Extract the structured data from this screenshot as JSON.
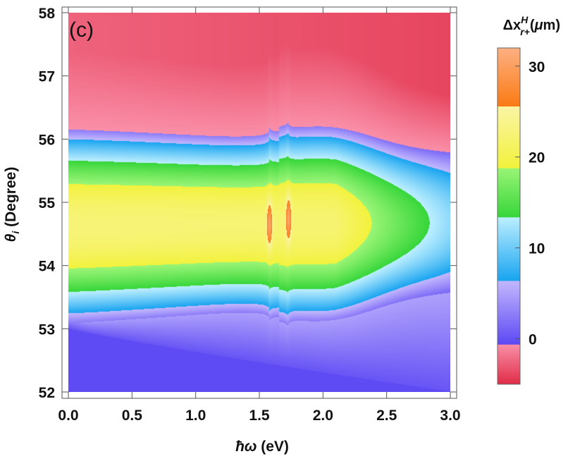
{
  "chart_data": {
    "type": "heatmap",
    "panel_label": "(c)",
    "xlabel": "ħω (eV)",
    "ylabel": "θi (Degree)",
    "xlim": [
      0,
      3
    ],
    "ylim": [
      52,
      58
    ],
    "x_ticks": [
      "0.0",
      "0.5",
      "1.0",
      "1.5",
      "2.0",
      "2.5",
      "3.0"
    ],
    "y_ticks": [
      "52",
      "53",
      "54",
      "55",
      "56",
      "57",
      "58"
    ],
    "resonances_eV": [
      1.58,
      1.73
    ],
    "colorbar": {
      "title": "Δx^H_r+(μm)",
      "range": [
        -5,
        32
      ],
      "ticks": [
        "0",
        "10",
        "20",
        "30"
      ],
      "bands": [
        {
          "from": -5,
          "to": -0.6,
          "color_low": "#e02b45",
          "color_high": "#fa8fa8"
        },
        {
          "from": -0.6,
          "to": 6.4,
          "color_low": "#5c48f4",
          "color_high": "#c3b8fd"
        },
        {
          "from": 6.4,
          "to": 13.4,
          "color_low": "#18a4f0",
          "color_high": "#bdefff"
        },
        {
          "from": 13.4,
          "to": 18.8,
          "color_low": "#36d63a",
          "color_high": "#9af576"
        },
        {
          "from": 18.8,
          "to": 25.6,
          "color_low": "#f2f23c",
          "color_high": "#fbf4a6"
        },
        {
          "from": 25.6,
          "to": 32.4,
          "color_low": "#fa7a14",
          "color_high": "#fdb082"
        }
      ]
    }
  }
}
